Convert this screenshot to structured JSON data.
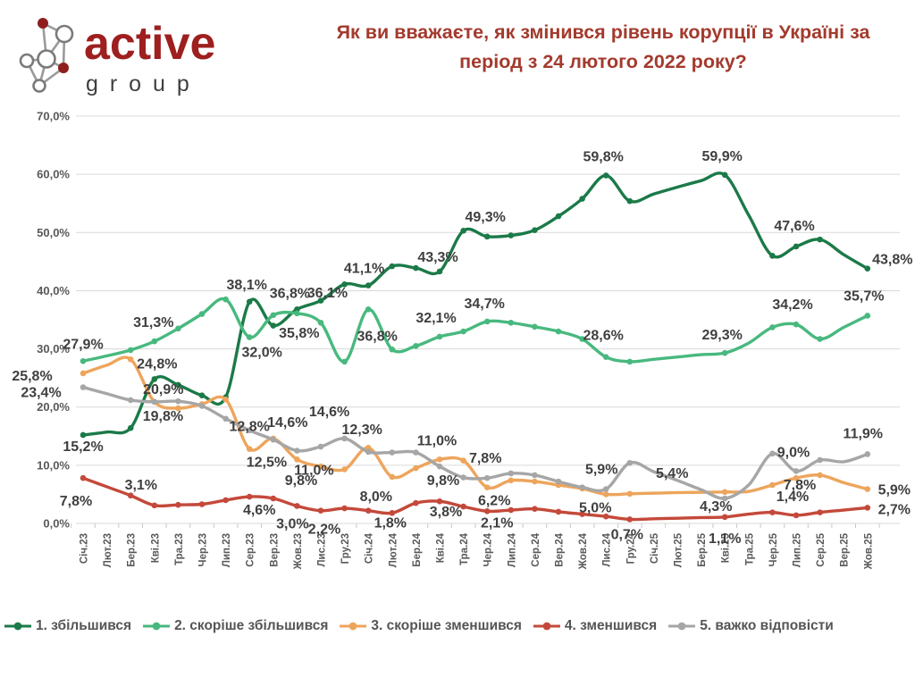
{
  "header": {
    "logo": {
      "brand": "active",
      "sub": "g r o u p"
    },
    "title_line1": "Як ви вважаєте, як змінився рівень корупції в Україні за",
    "title_line2": "період з 24 лютого 2022 року?"
  },
  "colors": {
    "title": "#a33a2d",
    "logo_red": "#9e1f1f",
    "logo_gray": "#3f3f3f",
    "axis_text": "#595959",
    "label_text": "#3f3f3f",
    "gridline": "#d9d9d9"
  },
  "chart_data": {
    "type": "line",
    "title": "Як ви вважаєте, як змінився рівень корупції в Україні за період з 24 лютого 2022 року?",
    "xlabel": "",
    "ylabel": "",
    "ylim": [
      0,
      70
    ],
    "grid": true,
    "legend_position": "bottom",
    "y_ticks": [
      {
        "v": 0,
        "label": "0,0%"
      },
      {
        "v": 10,
        "label": "10,0%"
      },
      {
        "v": 20,
        "label": "20,0%"
      },
      {
        "v": 30,
        "label": "30,0%"
      },
      {
        "v": 40,
        "label": "40,0%"
      },
      {
        "v": 50,
        "label": "50,0%"
      },
      {
        "v": 60,
        "label": "60,0%"
      },
      {
        "v": 70,
        "label": "70,0%"
      }
    ],
    "x": [
      "Січ.23",
      "Лют.23",
      "Бер.23",
      "Кві.23",
      "Тра.23",
      "Чер.23",
      "Лип.23",
      "Сер.23",
      "Вер.23",
      "Жов.23",
      "Лис.23",
      "Гру.23",
      "Січ.24",
      "Лют.24",
      "Бер.24",
      "Кві.24",
      "Тра.24",
      "Чер.24",
      "Лип.24",
      "Сер.24",
      "Вер.24",
      "Жов.24",
      "Лис.24",
      "Гру.24",
      "Січ.25",
      "Лют.25",
      "Бер.25",
      "Кві.25",
      "Тра.25",
      "Чер.25",
      "Лип.25",
      "Сер.25",
      "Вер.25",
      "Жов.25"
    ],
    "no_marker_indices": [
      1,
      24,
      25,
      26,
      28,
      32
    ],
    "series": [
      {
        "name": "1. збільшився",
        "color": "#1b7a48",
        "values": [
          15.2,
          15.7,
          16.4,
          24.8,
          23.8,
          22.0,
          21.7,
          38.1,
          34.0,
          36.8,
          38.3,
          41.1,
          40.9,
          44.2,
          43.9,
          43.3,
          50.3,
          49.3,
          49.5,
          50.4,
          52.8,
          55.8,
          59.8,
          55.4,
          56.6,
          57.8,
          58.9,
          59.9,
          53.0,
          46.0,
          47.6,
          48.8,
          46.2,
          43.8
        ],
        "labels": [
          {
            "i": 0,
            "t": "15,2%",
            "dx": 0,
            "dy": 18
          },
          {
            "i": 3,
            "t": "24,8%",
            "dx": 3,
            "dy": -12
          },
          {
            "i": 7,
            "t": "38,1%",
            "dx": -3,
            "dy": -14
          },
          {
            "i": 9,
            "t": "36,8%",
            "dx": -8,
            "dy": -13
          },
          {
            "i": 11,
            "t": "41,1%",
            "dx": 22,
            "dy": -13
          },
          {
            "i": 15,
            "t": "43,3%",
            "dx": -2,
            "dy": -11
          },
          {
            "i": 17,
            "t": "49,3%",
            "dx": -2,
            "dy": -17
          },
          {
            "i": 22,
            "t": "59,8%",
            "dx": -3,
            "dy": -16
          },
          {
            "i": 27,
            "t": "59,9%",
            "dx": -3,
            "dy": -16
          },
          {
            "i": 30,
            "t": "47,6%",
            "dx": -2,
            "dy": -18
          },
          {
            "i": 33,
            "t": "43,8%",
            "dx": 28,
            "dy": -5
          }
        ]
      },
      {
        "name": "2. скоріше збільшився",
        "color": "#48b97e",
        "values": [
          27.9,
          28.8,
          29.8,
          31.3,
          33.5,
          36.0,
          38.5,
          32.0,
          35.8,
          36.1,
          34.5,
          27.8,
          36.8,
          29.9,
          30.5,
          32.1,
          33.0,
          34.7,
          34.5,
          33.8,
          33.0,
          31.7,
          28.6,
          27.8,
          28.2,
          28.6,
          29.0,
          29.3,
          31.0,
          33.7,
          34.2,
          31.7,
          33.7,
          35.7
        ],
        "labels": [
          {
            "i": 0,
            "t": "27,9%",
            "dx": 0,
            "dy": -14
          },
          {
            "i": 3,
            "t": "31,3%",
            "dx": -1,
            "dy": -16
          },
          {
            "i": 7,
            "t": "32,0%",
            "dx": 14,
            "dy": 22
          },
          {
            "i": 8,
            "t": "35,8%",
            "dx": 29,
            "dy": 25
          },
          {
            "i": 9,
            "t": "36,1%",
            "dx": 34,
            "dy": -18
          },
          {
            "i": 12,
            "t": "36,8%",
            "dx": 10,
            "dy": 35
          },
          {
            "i": 15,
            "t": "32,1%",
            "dx": -4,
            "dy": -16
          },
          {
            "i": 17,
            "t": "34,7%",
            "dx": -3,
            "dy": -15
          },
          {
            "i": 22,
            "t": "28,6%",
            "dx": -3,
            "dy": -19
          },
          {
            "i": 27,
            "t": "29,3%",
            "dx": -3,
            "dy": -15
          },
          {
            "i": 30,
            "t": "34,2%",
            "dx": -4,
            "dy": -17
          },
          {
            "i": 33,
            "t": "35,7%",
            "dx": -4,
            "dy": -17
          }
        ]
      },
      {
        "name": "3. скоріше зменшився",
        "color": "#eda55c",
        "values": [
          25.8,
          27.2,
          28.2,
          20.9,
          19.8,
          20.5,
          21.3,
          12.8,
          14.6,
          11.0,
          9.8,
          9.3,
          13.0,
          8.0,
          9.5,
          11.0,
          10.8,
          6.2,
          7.4,
          7.2,
          6.6,
          6.0,
          5.0,
          5.1,
          5.2,
          5.3,
          5.35,
          5.4,
          5.5,
          6.6,
          7.8,
          8.3,
          7.0,
          5.9
        ],
        "labels": [
          {
            "i": 0,
            "t": "25,8%",
            "dx": -57,
            "dy": 8
          },
          {
            "i": 3,
            "t": "20,9%",
            "dx": 10,
            "dy": -9
          },
          {
            "i": 4,
            "t": "19,8%",
            "dx": -17,
            "dy": 14
          },
          {
            "i": 7,
            "t": "12,8%",
            "dx": 0,
            "dy": -20
          },
          {
            "i": 8,
            "t": "14,6%",
            "dx": 16,
            "dy": -13
          },
          {
            "i": 9,
            "t": "11,0%",
            "dx": 19,
            "dy": 17
          },
          {
            "i": 10,
            "t": "9,8%",
            "dx": -22,
            "dy": 21
          },
          {
            "i": 13,
            "t": "8,0%",
            "dx": -18,
            "dy": 27
          },
          {
            "i": 15,
            "t": "11,0%",
            "dx": -3,
            "dy": -16
          },
          {
            "i": 17,
            "t": "6,2%",
            "dx": 8,
            "dy": 20
          },
          {
            "i": 22,
            "t": "5,0%",
            "dx": -12,
            "dy": 20
          },
          {
            "i": 27,
            "t": "5,4%",
            "dx": -59,
            "dy": -16
          },
          {
            "i": 30,
            "t": "7,8%",
            "dx": 4,
            "dy": 13
          },
          {
            "i": 33,
            "t": "5,9%",
            "dx": 30,
            "dy": 6
          }
        ]
      },
      {
        "name": "4. зменшився",
        "color": "#c4493a",
        "values": [
          7.8,
          6.3,
          4.8,
          3.1,
          3.2,
          3.3,
          4.0,
          4.6,
          4.3,
          3.0,
          2.2,
          2.6,
          2.2,
          1.8,
          3.5,
          3.8,
          2.9,
          2.1,
          2.3,
          2.5,
          2.0,
          1.6,
          1.2,
          0.7,
          0.8,
          0.9,
          1.0,
          1.1,
          1.6,
          1.9,
          1.4,
          1.9,
          2.3,
          2.7
        ],
        "labels": [
          {
            "i": 0,
            "t": "7,8%",
            "dx": -8,
            "dy": 31
          },
          {
            "i": 3,
            "t": "3,1%",
            "dx": -15,
            "dy": -18
          },
          {
            "i": 7,
            "t": "4,6%",
            "dx": 11,
            "dy": 20
          },
          {
            "i": 9,
            "t": "3,0%",
            "dx": -5,
            "dy": 25
          },
          {
            "i": 10,
            "t": "2,2%",
            "dx": 4,
            "dy": 26
          },
          {
            "i": 13,
            "t": "1,8%",
            "dx": -2,
            "dy": 16
          },
          {
            "i": 15,
            "t": "3,8%",
            "dx": 7,
            "dy": 17
          },
          {
            "i": 17,
            "t": "2,1%",
            "dx": 11,
            "dy": 18
          },
          {
            "i": 23,
            "t": "0,7%",
            "dx": -3,
            "dy": 22
          },
          {
            "i": 27,
            "t": "1,1%",
            "dx": 0,
            "dy": 29
          },
          {
            "i": 30,
            "t": "1,4%",
            "dx": -4,
            "dy": -16
          },
          {
            "i": 33,
            "t": "2,7%",
            "dx": 30,
            "dy": 7
          }
        ]
      },
      {
        "name": "5. важко відповісти",
        "color": "#a6a6a6",
        "values": [
          23.4,
          22.3,
          21.2,
          20.9,
          21.0,
          20.2,
          18.0,
          16.0,
          14.4,
          12.5,
          13.2,
          14.6,
          12.3,
          12.2,
          12.2,
          9.8,
          7.9,
          7.8,
          8.6,
          8.3,
          7.2,
          6.2,
          5.9,
          10.4,
          8.9,
          7.4,
          5.8,
          4.3,
          6.6,
          12.0,
          9.0,
          10.9,
          10.6,
          11.9
        ],
        "labels": [
          {
            "i": 0,
            "t": "23,4%",
            "dx": -47,
            "dy": 11
          },
          {
            "i": 9,
            "t": "12,5%",
            "dx": -34,
            "dy": 18
          },
          {
            "i": 11,
            "t": "14,6%",
            "dx": -17,
            "dy": -25
          },
          {
            "i": 12,
            "t": "12,3%",
            "dx": -7,
            "dy": -20
          },
          {
            "i": 15,
            "t": "9,8%",
            "dx": 4,
            "dy": 21
          },
          {
            "i": 17,
            "t": "7,8%",
            "dx": -2,
            "dy": -17
          },
          {
            "i": 22,
            "t": "5,9%",
            "dx": -5,
            "dy": -17
          },
          {
            "i": 27,
            "t": "4,3%",
            "dx": -10,
            "dy": 14
          },
          {
            "i": 30,
            "t": "9,0%",
            "dx": -3,
            "dy": -16
          },
          {
            "i": 33,
            "t": "11,9%",
            "dx": -5,
            "dy": -18
          }
        ]
      }
    ]
  }
}
